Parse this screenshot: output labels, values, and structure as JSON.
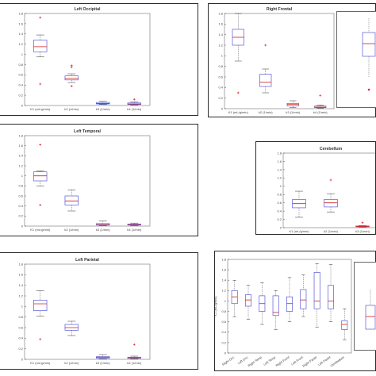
{
  "colors": {
    "box": "#5a5ad8",
    "median": "#d02020",
    "outlier": "#e02030",
    "frame": "#2b2b2b"
  },
  "chart_data": [
    {
      "id": "lo",
      "type": "box",
      "title": "Left Occipital",
      "categories": [
        "K1 (mL/g/min)",
        "k2 (1/min)",
        "k3 (1/min)",
        "k4 (1/min)"
      ],
      "ylim": [
        0,
        1.8
      ],
      "yticks": [
        0,
        0.2,
        0.4,
        0.6,
        0.8,
        1,
        1.2,
        1.4,
        1.6,
        1.8
      ],
      "boxes": [
        {
          "min": 0.95,
          "q1": 1.05,
          "median": 1.15,
          "q3": 1.28,
          "max": 1.38,
          "outliers": [
            1.72,
            0.42
          ]
        },
        {
          "min": 0.45,
          "q1": 0.5,
          "median": 0.53,
          "q3": 0.58,
          "max": 0.62,
          "outliers": [
            0.75,
            0.78,
            0.38
          ]
        },
        {
          "min": 0.02,
          "q1": 0.03,
          "median": 0.04,
          "q3": 0.06,
          "max": 0.08,
          "outliers": []
        },
        {
          "min": 0.01,
          "q1": 0.02,
          "median": 0.03,
          "q3": 0.05,
          "max": 0.07,
          "outliers": [
            0.12
          ]
        }
      ]
    },
    {
      "id": "rf",
      "type": "box",
      "title": "Right Frontal",
      "categories": [
        "K1 (mL/g/min)",
        "k2 (1/min)",
        "k3 (1/min)",
        "k4 (1/min)"
      ],
      "ylim": [
        0,
        1.8
      ],
      "yticks": [
        0,
        0.2,
        0.4,
        0.6,
        0.8,
        1,
        1.2,
        1.4,
        1.6,
        1.8
      ],
      "boxes": [
        {
          "min": 0.9,
          "q1": 1.2,
          "median": 1.35,
          "q3": 1.5,
          "max": 1.8,
          "outliers": [
            0.3
          ]
        },
        {
          "min": 0.3,
          "q1": 0.42,
          "median": 0.5,
          "q3": 0.65,
          "max": 0.75,
          "outliers": [
            1.2
          ]
        },
        {
          "min": 0.02,
          "q1": 0.05,
          "median": 0.08,
          "q3": 0.1,
          "max": 0.15,
          "outliers": []
        },
        {
          "min": 0.01,
          "q1": 0.02,
          "median": 0.03,
          "q3": 0.05,
          "max": 0.07,
          "outliers": [
            0.25
          ]
        }
      ]
    },
    {
      "id": "lt",
      "type": "box",
      "title": "Left Temporal",
      "categories": [
        "K1 (mL/g/min)",
        "k2 (1/min)",
        "k3 (1/min)",
        "k4 (1/min)"
      ],
      "ylim": [
        0,
        1.8
      ],
      "yticks": [
        0,
        0.2,
        0.4,
        0.6,
        0.8,
        1,
        1.2,
        1.4,
        1.6,
        1.8
      ],
      "boxes": [
        {
          "min": 0.8,
          "q1": 0.9,
          "median": 1.0,
          "q3": 1.08,
          "max": 1.1,
          "outliers": [
            1.62,
            0.42
          ]
        },
        {
          "min": 0.3,
          "q1": 0.42,
          "median": 0.5,
          "q3": 0.6,
          "max": 0.72,
          "outliers": []
        },
        {
          "min": 0.01,
          "q1": 0.02,
          "median": 0.03,
          "q3": 0.05,
          "max": 0.1,
          "outliers": []
        },
        {
          "min": 0.01,
          "q1": 0.02,
          "median": 0.03,
          "q3": 0.04,
          "max": 0.06,
          "outliers": []
        }
      ]
    },
    {
      "id": "ce",
      "type": "box",
      "title": "Cerebellum",
      "categories": [
        "K1 (mL/g/min)",
        "k2 (1/min)",
        "k3 (1/min)"
      ],
      "ylim": [
        0,
        1.8
      ],
      "yticks": [
        0,
        0.2,
        0.4,
        0.6,
        0.8,
        1,
        1.2,
        1.4,
        1.6,
        1.8
      ],
      "boxes": [
        {
          "min": 0.25,
          "q1": 0.48,
          "median": 0.58,
          "q3": 0.68,
          "max": 0.88,
          "outliers": []
        },
        {
          "min": 0.38,
          "q1": 0.5,
          "median": 0.6,
          "q3": 0.68,
          "max": 0.82,
          "outliers": [
            1.15
          ]
        },
        {
          "min": 0.01,
          "q1": 0.02,
          "median": 0.03,
          "q3": 0.04,
          "max": 0.05,
          "outliers": [
            0.12
          ]
        }
      ]
    },
    {
      "id": "lp",
      "type": "box",
      "title": "Left Parietal",
      "categories": [
        "K1 (mL/g/min)",
        "k2 (1/min)",
        "k3 (1/min)",
        "k4 (1/min)"
      ],
      "ylim": [
        0,
        1.8
      ],
      "yticks": [
        0,
        0.2,
        0.4,
        0.6,
        0.8,
        1,
        1.2,
        1.4,
        1.6,
        1.8
      ],
      "boxes": [
        {
          "min": 0.82,
          "q1": 0.92,
          "median": 1.05,
          "q3": 1.12,
          "max": 1.3,
          "outliers": [
            0.38
          ]
        },
        {
          "min": 0.45,
          "q1": 0.55,
          "median": 0.6,
          "q3": 0.66,
          "max": 0.72,
          "outliers": []
        },
        {
          "min": 0.01,
          "q1": 0.02,
          "median": 0.04,
          "q3": 0.05,
          "max": 0.09,
          "outliers": []
        },
        {
          "min": 0.01,
          "q1": 0.02,
          "median": 0.03,
          "q3": 0.04,
          "max": 0.06,
          "outliers": [
            0.28
          ]
        }
      ]
    },
    {
      "id": "br",
      "type": "box",
      "title": "",
      "categories": [
        "Right Occ",
        "Left Occ",
        "Right Temp",
        "Left Temp",
        "Right Front",
        "Left Front",
        "Right Pariet",
        "Left Pariet",
        "Cerebellum"
      ],
      "ylim": [
        0,
        1.8
      ],
      "yticks": [
        0,
        0.2,
        0.4,
        0.6,
        0.8,
        1,
        1.2,
        1.4,
        1.6,
        1.8
      ],
      "ylabel": "K1 (mL/g/min)",
      "boxes": [
        {
          "min": 0.7,
          "q1": 0.95,
          "median": 1.08,
          "q3": 1.2,
          "max": 1.4,
          "outliers": []
        },
        {
          "min": 0.65,
          "q1": 0.9,
          "median": 1.02,
          "q3": 1.12,
          "max": 1.3,
          "outliers": []
        },
        {
          "min": 0.55,
          "q1": 0.8,
          "median": 0.95,
          "q3": 1.1,
          "max": 1.35,
          "outliers": []
        },
        {
          "min": 0.45,
          "q1": 0.72,
          "median": 0.78,
          "q3": 1.1,
          "max": 1.2,
          "outliers": []
        },
        {
          "min": 0.6,
          "q1": 0.8,
          "median": 0.95,
          "q3": 1.08,
          "max": 1.45,
          "outliers": []
        },
        {
          "min": 0.7,
          "q1": 0.85,
          "median": 1.02,
          "q3": 1.22,
          "max": 1.5,
          "outliers": []
        },
        {
          "min": 0.5,
          "q1": 0.85,
          "median": 1.0,
          "q3": 1.55,
          "max": 1.72,
          "outliers": []
        },
        {
          "min": 0.6,
          "q1": 0.85,
          "median": 1.0,
          "q3": 1.3,
          "max": 1.7,
          "outliers": []
        },
        {
          "min": 0.25,
          "q1": 0.45,
          "median": 0.55,
          "q3": 0.62,
          "max": 0.85,
          "outliers": []
        }
      ]
    }
  ]
}
